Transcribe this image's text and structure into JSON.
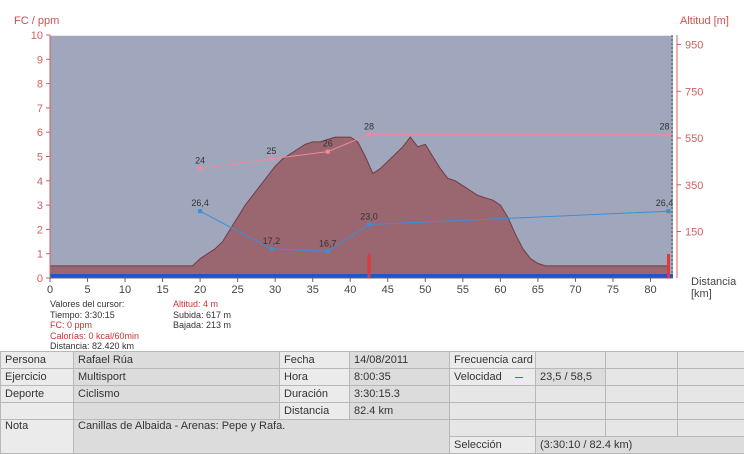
{
  "chart_data": {
    "type": "line",
    "left_axis_label": "FC / ppm",
    "right_axis_label": "Altitud [m]",
    "x_axis_label": [
      "Distancia",
      "[km]"
    ],
    "x_ticks": [
      0,
      5,
      10,
      15,
      20,
      25,
      30,
      35,
      40,
      45,
      50,
      55,
      60,
      65,
      70,
      75,
      80
    ],
    "y_left_ticks": [
      0,
      1,
      2,
      3,
      4,
      5,
      6,
      7,
      8,
      9,
      10
    ],
    "y_right_ticks": [
      150,
      350,
      550,
      750,
      950
    ],
    "xlim": [
      0,
      83
    ],
    "ylim_left": [
      0,
      10
    ],
    "altitude": {
      "x": [
        0,
        5,
        10,
        15,
        19,
        20,
        21,
        22,
        23,
        24,
        25,
        26,
        27,
        28,
        29,
        30,
        31,
        32,
        33,
        34,
        35,
        36,
        37,
        38,
        39,
        40,
        41,
        42,
        43,
        44,
        45,
        46,
        47,
        48,
        49,
        50,
        51,
        52,
        53,
        54,
        55,
        56,
        57,
        58,
        59,
        60,
        61,
        62,
        63,
        64,
        65,
        66,
        67,
        70,
        75,
        80,
        82.4
      ],
      "y": [
        0.5,
        0.5,
        0.5,
        0.5,
        0.5,
        0.8,
        1.0,
        1.2,
        1.5,
        2.0,
        2.5,
        3.0,
        3.4,
        3.8,
        4.2,
        4.6,
        4.9,
        5.1,
        5.3,
        5.5,
        5.6,
        5.6,
        5.7,
        5.8,
        5.8,
        5.8,
        5.6,
        5.0,
        4.3,
        4.5,
        4.8,
        5.1,
        5.4,
        5.8,
        5.4,
        5.5,
        5.0,
        4.5,
        4.1,
        4.0,
        3.8,
        3.6,
        3.4,
        3.3,
        3.2,
        3.0,
        2.5,
        1.8,
        1.2,
        0.8,
        0.6,
        0.5,
        0.5,
        0.5,
        0.5,
        0.5,
        0.5
      ]
    },
    "series": [
      {
        "name": "Frecuencia cardíaca",
        "color": "#f08a9a",
        "x": [
          20,
          29.5,
          37,
          42.5,
          82.4
        ],
        "y": [
          4.5,
          4.9,
          5.2,
          5.9,
          5.9
        ],
        "labels": [
          "24",
          "25",
          "26",
          "28",
          "28"
        ]
      },
      {
        "name": "Velocidad",
        "color": "#3a8fdc",
        "x": [
          20,
          29.5,
          37,
          42.5,
          82.4
        ],
        "y": [
          2.75,
          1.2,
          1.1,
          2.2,
          2.75
        ],
        "labels": [
          "26,4",
          "17,2",
          "16,7",
          "23,0",
          "26,4"
        ]
      }
    ],
    "markers_x": [
      42.5,
      82.4
    ],
    "cursor": {
      "title": "Valores del cursor:",
      "tiempo": "Tiempo: 3:30:15",
      "fc": "FC: 0 ppm",
      "calorias": "Calorías: 0 kcal/60min",
      "distancia": "Distancia: 82.420 km",
      "altitud": "Altitud: 4 m",
      "subida": "Subida: 617 m",
      "bajada": "Bajada: 213 m"
    },
    "colors": {
      "background": "#a0a6bc",
      "altitude_fill": "#9a6670",
      "axis": "#d06060",
      "track": "#2255cc",
      "marker": "#e03a3a"
    }
  },
  "info": {
    "persona_label": "Persona",
    "persona_value": "Rafael Rúa",
    "fecha_label": "Fecha",
    "fecha_value": "14/08/2011",
    "fc_label": "Frecuencia card",
    "ejercicio_label": "Ejercicio",
    "ejercicio_value": "Multisport",
    "hora_label": "Hora",
    "hora_value": "8:00:35",
    "velocidad_label": "Velocidad",
    "velocidad_value": "23,5 / 58,5",
    "deporte_label": "Deporte",
    "deporte_value": "Ciclismo",
    "duracion_label": "Duración",
    "duracion_value": "3:30:15.3",
    "distancia_label": "Distancia",
    "distancia_value": "82.4 km",
    "nota_label": "Nota",
    "nota_value": "Canillas de Albaida - Arenas: Pepe y Rafa.",
    "seleccion_label": "Selección",
    "seleccion_value": "(3:30:10 / 82.4 km)"
  }
}
